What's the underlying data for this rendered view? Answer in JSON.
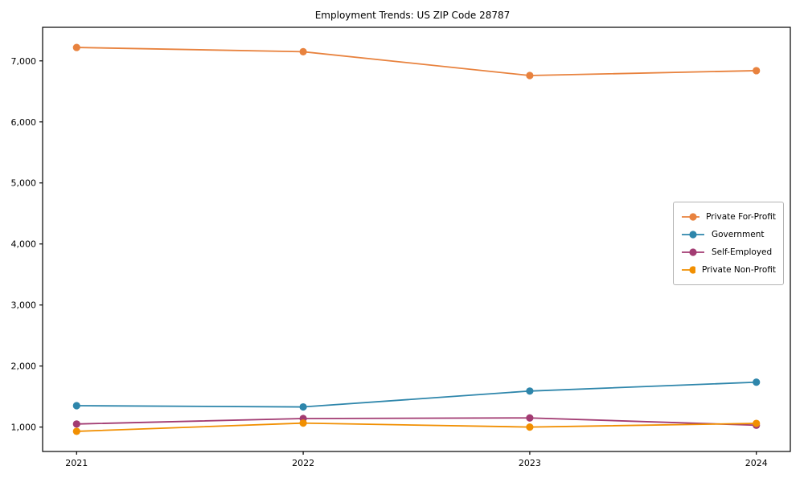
{
  "chart_data": {
    "type": "line",
    "title": "Employment Trends: US ZIP Code 28787",
    "xlabel": "",
    "ylabel": "",
    "x": [
      2021,
      2022,
      2023,
      2024
    ],
    "x_tick_labels": [
      "2021",
      "2022",
      "2023",
      "2024"
    ],
    "series": [
      {
        "name": "Private For-Profit",
        "color": "#E8823E",
        "values": [
          7220,
          7150,
          6760,
          6840
        ]
      },
      {
        "name": "Government",
        "color": "#2E86AB",
        "values": [
          1350,
          1330,
          1590,
          1735
        ]
      },
      {
        "name": "Self-Employed",
        "color": "#A23B72",
        "values": [
          1050,
          1140,
          1150,
          1030
        ]
      },
      {
        "name": "Private Non-Profit",
        "color": "#F18F01",
        "values": [
          930,
          1065,
          1000,
          1060
        ]
      }
    ],
    "y_ticks": [
      1000,
      2000,
      3000,
      4000,
      5000,
      6000,
      7000
    ],
    "y_tick_labels": [
      "1,000",
      "2,000",
      "3,000",
      "4,000",
      "5,000",
      "6,000",
      "7,000"
    ],
    "ylim": [
      600,
      7550
    ],
    "xlim": [
      2020.85,
      2024.15
    ],
    "grid": false,
    "legend_position": "center right",
    "marker": "circle",
    "axis_color": "#000000",
    "background_color": "#ffffff"
  }
}
